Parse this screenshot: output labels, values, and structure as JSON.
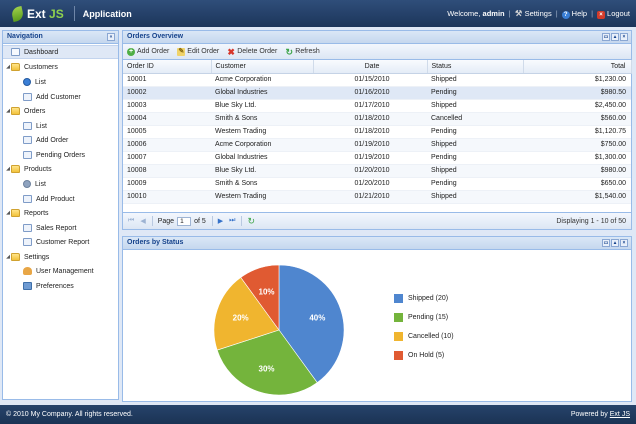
{
  "header": {
    "logo_text": "Ext",
    "logo_js": "JS",
    "title": "Application",
    "welcome": "Welcome,",
    "user": "admin",
    "settings": "Settings",
    "help": "Help",
    "logout": "Logout"
  },
  "nav": {
    "title": "Navigation",
    "dashboard": "Dashboard",
    "customers": "Customers",
    "customers_list": "List",
    "add_customer": "Add Customer",
    "orders": "Orders",
    "orders_list": "List",
    "add_order": "Add Order",
    "pending_orders": "Pending Orders",
    "products": "Products",
    "products_list": "List",
    "add_product": "Add Product",
    "reports": "Reports",
    "sales_report": "Sales Report",
    "customer_report": "Customer Report",
    "settings": "Settings",
    "user_management": "User Management",
    "preferences": "Preferences"
  },
  "orders": {
    "title": "Orders Overview",
    "toolbar": {
      "add": "Add Order",
      "edit": "Edit Order",
      "delete": "Delete Order",
      "refresh": "Refresh"
    },
    "columns": [
      "Order ID",
      "Customer",
      "Date",
      "Status",
      "Total"
    ],
    "rows": [
      [
        "10001",
        "Acme Corporation",
        "01/15/2010",
        "Shipped",
        "$1,230.00"
      ],
      [
        "10002",
        "Global Industries",
        "01/16/2010",
        "Pending",
        "$980.50"
      ],
      [
        "10003",
        "Blue Sky Ltd.",
        "01/17/2010",
        "Shipped",
        "$2,450.00"
      ],
      [
        "10004",
        "Smith & Sons",
        "01/18/2010",
        "Cancelled",
        "$560.00"
      ],
      [
        "10005",
        "Western Trading",
        "01/18/2010",
        "Pending",
        "$1,120.75"
      ],
      [
        "10006",
        "Acme Corporation",
        "01/19/2010",
        "Shipped",
        "$750.00"
      ],
      [
        "10007",
        "Global Industries",
        "01/19/2010",
        "Pending",
        "$1,300.00"
      ],
      [
        "10008",
        "Blue Sky Ltd.",
        "01/20/2010",
        "Shipped",
        "$980.00"
      ],
      [
        "10009",
        "Smith & Sons",
        "01/20/2010",
        "Pending",
        "$650.00"
      ],
      [
        "10010",
        "Western Trading",
        "01/21/2010",
        "Shipped",
        "$1,540.00"
      ]
    ],
    "pager": {
      "page_label": "Page",
      "page_value": "1",
      "of_label": "of 5",
      "display": "Displaying 1 - 10 of 50"
    }
  },
  "chart_panel": {
    "title": "Orders by Status"
  },
  "chart_data": {
    "type": "pie",
    "title": "",
    "categories": [
      "Shipped",
      "Pending",
      "Cancelled",
      "On Hold"
    ],
    "values": [
      20,
      15,
      10,
      5
    ],
    "percent_labels": [
      "40%",
      "30%",
      "20%",
      "10%"
    ],
    "legend": [
      "Shipped (20)",
      "Pending (15)",
      "Cancelled (10)",
      "On Hold (5)"
    ],
    "colors": [
      "#4f86cf",
      "#74b43c",
      "#f0b52f",
      "#e05a32"
    ],
    "legend_position": "right"
  },
  "footer": {
    "copyright": "© 2010 My Company. All rights reserved.",
    "powered_prefix": "Powered by",
    "powered_link": "Ext JS"
  }
}
